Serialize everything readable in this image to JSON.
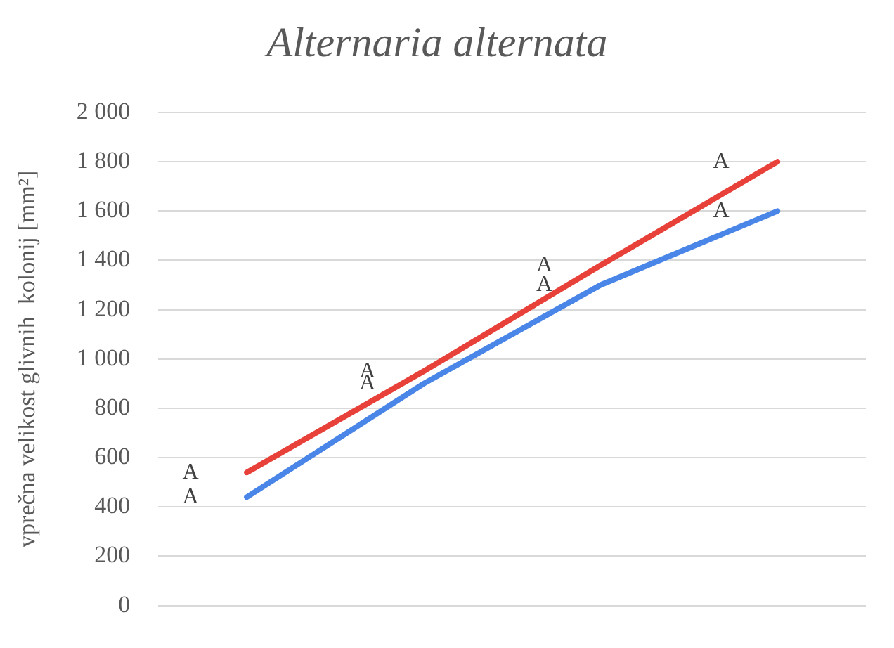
{
  "chart_data": {
    "type": "line",
    "title": "Alternaria alternata",
    "ylabel": "vprečna velikost glivnih  kolonij [mm²]",
    "categories": [
      null,
      null,
      null,
      null
    ],
    "series": [
      {
        "color": "#e8413a",
        "values": [
          540,
          950,
          1380,
          1800
        ]
      },
      {
        "color": "#4a86e8",
        "values": [
          440,
          900,
          1300,
          1600
        ]
      }
    ],
    "ylim": [
      0,
      2000
    ],
    "yticks": [
      0,
      200,
      400,
      600,
      800,
      {
        "value": 1000,
        "label": "1 000"
      },
      {
        "value": 1200,
        "label": "1 200"
      },
      {
        "value": 1400,
        "label": "1 400"
      },
      {
        "value": 1600,
        "label": "1 600"
      },
      {
        "value": 1800,
        "label": "1 800"
      },
      {
        "value": 2000,
        "label": "2 000"
      }
    ],
    "grid": "y",
    "tick_labels": "y",
    "legend": false,
    "marker": "none",
    "line_style": "solid",
    "annotations": [
      "A",
      "A",
      "A",
      "A",
      "A",
      "A",
      "A",
      "A"
    ]
  }
}
